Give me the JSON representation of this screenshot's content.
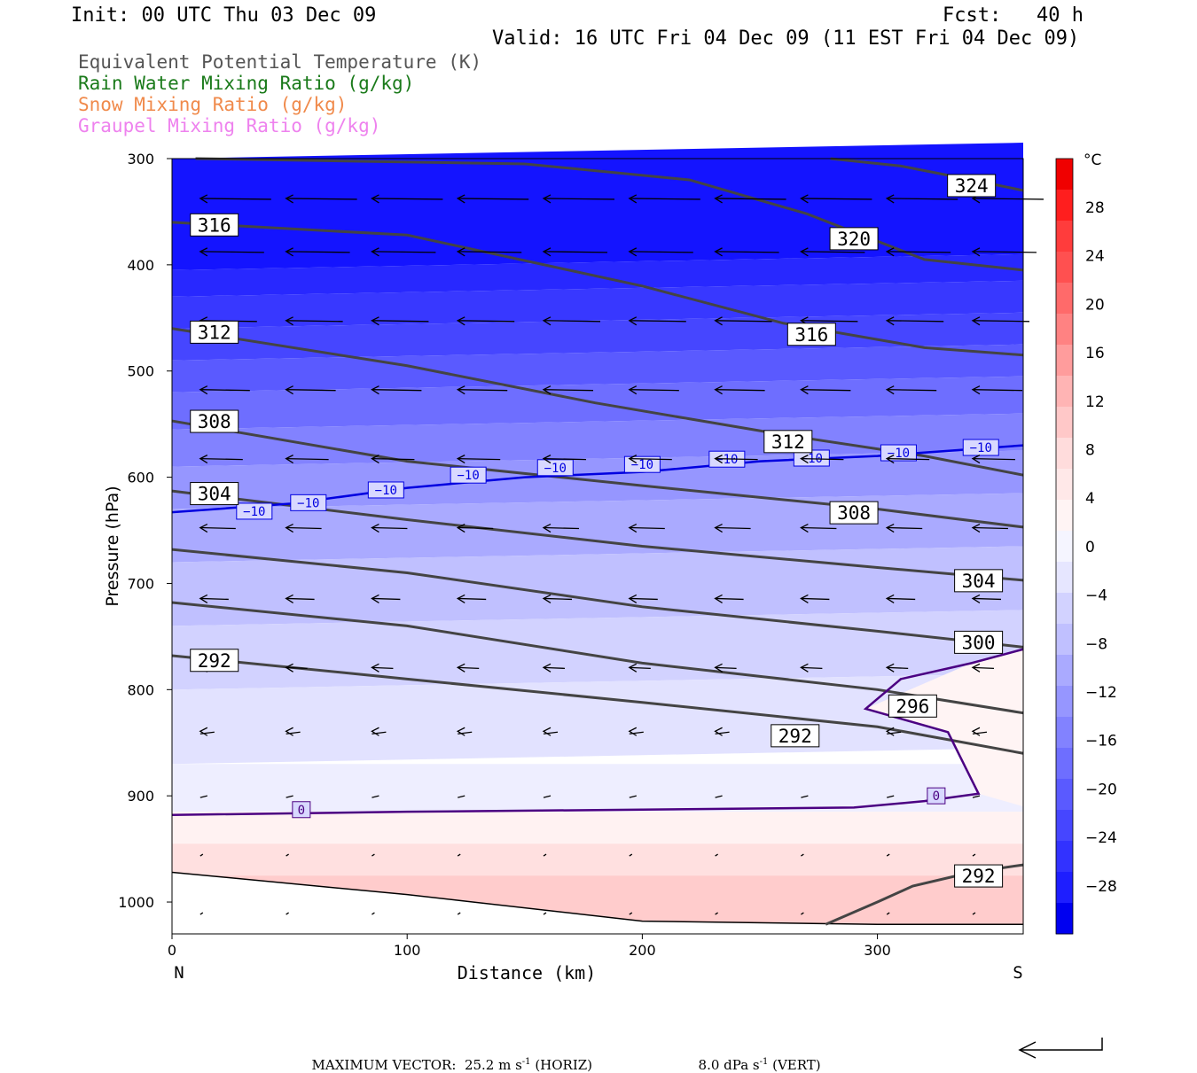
{
  "header": {
    "init": "Init: 00 UTC Thu 03 Dec 09",
    "fcst": "Fcst:   40 h",
    "valid": "Valid: 16 UTC Fri 04 Dec 09 (11 EST Fri 04 Dec 09)"
  },
  "titles": [
    {
      "text": "Equivalent Potential Temperature (K)",
      "color": "#555555"
    },
    {
      "text": "Rain Water Mixing Ratio (g/kg)",
      "color": "#1a7a1a"
    },
    {
      "text": "Snow Mixing Ratio (g/kg)",
      "color": "#f08a4b"
    },
    {
      "text": "Graupel Mixing Ratio (g/kg)",
      "color": "#ee82ee"
    }
  ],
  "footer": {
    "label": "MAXIMUM VECTOR:",
    "horiz": "25.2 m s",
    "horiz_suffix": " (HORIZ)",
    "vert": "8.0 dPa s",
    "vert_suffix": " (VERT)",
    "exp": "-1"
  },
  "chart_data": {
    "type": "contour",
    "title": "Equivalent Potential Temperature (K)",
    "xlabel": "Distance (km)",
    "ylabel": "Pressure (hPa)",
    "xlim": [
      0,
      362
    ],
    "ylim": [
      1030,
      300
    ],
    "x_ticks": [
      0,
      100,
      200,
      300
    ],
    "y_ticks": [
      300,
      400,
      500,
      600,
      700,
      800,
      900,
      1000
    ],
    "x_end_labels": {
      "left": "N",
      "right": "S"
    },
    "colorbar": {
      "unit": "°C",
      "tick_labels": [
        "28",
        "24",
        "20",
        "16",
        "12",
        "8",
        "4",
        "0",
        "−4",
        "−8",
        "−12",
        "−16",
        "−20",
        "−24",
        "−28"
      ],
      "colors": [
        "#f00000",
        "#ff1e1e",
        "#ff3c3c",
        "#ff5050",
        "#ff6a6a",
        "#ff8282",
        "#ff9c9c",
        "#ffb4b4",
        "#ffc8c8",
        "#ffdcdc",
        "#ffe8e8",
        "#fff4f4",
        "#f5f5ff",
        "#e6e6ff",
        "#d2d2ff",
        "#c0c0ff",
        "#aaaaff",
        "#9696ff",
        "#8282ff",
        "#6e6eff",
        "#5a5aff",
        "#4646ff",
        "#3232ff",
        "#1e1eff",
        "#0000f0"
      ]
    },
    "temperature_bands": [
      {
        "p": 400,
        "value": -28
      },
      {
        "p": 460,
        "value": -24
      },
      {
        "p": 520,
        "value": -20
      },
      {
        "p": 580,
        "value": -16
      },
      {
        "p": 640,
        "value": -12
      },
      {
        "p": 720,
        "value": -8
      },
      {
        "p": 800,
        "value": -4
      },
      {
        "p": 900,
        "value": 0
      },
      {
        "p": 960,
        "value": 4
      },
      {
        "p": 1000,
        "value": 8
      }
    ],
    "theta_e_contours": [
      {
        "label": "324",
        "points": [
          [
            280,
            300
          ],
          [
            310,
            307
          ],
          [
            340,
            320
          ],
          [
            362,
            330
          ]
        ],
        "label_at": [
          340,
          325
        ]
      },
      {
        "label": "320",
        "points": [
          [
            10,
            300
          ],
          [
            150,
            305
          ],
          [
            220,
            320
          ],
          [
            270,
            352
          ],
          [
            320,
            395
          ],
          [
            362,
            405
          ]
        ],
        "label_at": [
          290,
          375
        ]
      },
      {
        "label": "316",
        "points": [
          [
            0,
            360
          ],
          [
            100,
            372
          ],
          [
            200,
            420
          ],
          [
            260,
            455
          ],
          [
            320,
            478
          ],
          [
            362,
            485
          ]
        ],
        "label_at": [
          18,
          362
        ]
      },
      {
        "label": "316",
        "points": [
          [
            0,
            360
          ],
          [
            100,
            372
          ],
          [
            200,
            420
          ],
          [
            260,
            455
          ],
          [
            320,
            478
          ],
          [
            362,
            485
          ]
        ],
        "label_at": [
          272,
          465
        ]
      },
      {
        "label": "312",
        "points": [
          [
            0,
            460
          ],
          [
            100,
            495
          ],
          [
            180,
            530
          ],
          [
            260,
            560
          ],
          [
            320,
            580
          ],
          [
            362,
            598
          ]
        ],
        "label_at": [
          18,
          463
        ]
      },
      {
        "label": "312",
        "points": [
          [
            0,
            460
          ],
          [
            100,
            495
          ],
          [
            180,
            530
          ],
          [
            260,
            560
          ],
          [
            320,
            580
          ],
          [
            362,
            598
          ]
        ],
        "label_at": [
          262,
          566
        ]
      },
      {
        "label": "308",
        "points": [
          [
            0,
            547
          ],
          [
            100,
            585
          ],
          [
            200,
            608
          ],
          [
            300,
            630
          ],
          [
            362,
            647
          ]
        ],
        "label_at": [
          18,
          547
        ]
      },
      {
        "label": "308",
        "points": [
          [
            0,
            547
          ],
          [
            100,
            585
          ],
          [
            200,
            608
          ],
          [
            300,
            630
          ],
          [
            362,
            647
          ]
        ],
        "label_at": [
          290,
          633
        ]
      },
      {
        "label": "304",
        "points": [
          [
            0,
            613
          ],
          [
            100,
            640
          ],
          [
            200,
            665
          ],
          [
            300,
            685
          ],
          [
            362,
            697
          ]
        ],
        "label_at": [
          18,
          615
        ]
      },
      {
        "label": "304",
        "points": [
          [
            0,
            613
          ],
          [
            100,
            640
          ],
          [
            200,
            665
          ],
          [
            300,
            685
          ],
          [
            362,
            697
          ]
        ],
        "label_at": [
          343,
          697
        ]
      },
      {
        "label": "300",
        "points": [
          [
            0,
            668
          ],
          [
            100,
            690
          ],
          [
            200,
            722
          ],
          [
            300,
            745
          ],
          [
            362,
            760
          ]
        ],
        "label_at": [
          343,
          755
        ]
      },
      {
        "label": "296",
        "points": [
          [
            0,
            718
          ],
          [
            100,
            740
          ],
          [
            200,
            775
          ],
          [
            300,
            800
          ],
          [
            362,
            822
          ]
        ],
        "label_at": [
          315,
          815
        ]
      },
      {
        "label": "292",
        "points": [
          [
            0,
            768
          ],
          [
            100,
            790
          ],
          [
            200,
            812
          ],
          [
            300,
            835
          ],
          [
            362,
            860
          ]
        ],
        "label_at": [
          18,
          772
        ]
      },
      {
        "label": "292",
        "points": [
          [
            0,
            768
          ],
          [
            100,
            790
          ],
          [
            200,
            812
          ],
          [
            300,
            835
          ],
          [
            362,
            860
          ]
        ],
        "label_at": [
          265,
          843
        ]
      },
      {
        "label": "292",
        "points": [
          [
            278,
            1021
          ],
          [
            300,
            1000
          ],
          [
            315,
            985
          ],
          [
            340,
            972
          ],
          [
            362,
            965
          ]
        ],
        "label_at": [
          343,
          975
        ]
      }
    ],
    "temp_contours": [
      {
        "label": "−10",
        "color": "#0000e0",
        "points": [
          [
            0,
            633
          ],
          [
            50,
            625
          ],
          [
            100,
            610
          ],
          [
            150,
            600
          ],
          [
            200,
            595
          ],
          [
            250,
            585
          ],
          [
            300,
            580
          ],
          [
            362,
            570
          ]
        ],
        "labels_at": [
          [
            35,
            632
          ],
          [
            58,
            624
          ],
          [
            91,
            612
          ],
          [
            126,
            598
          ],
          [
            163,
            591
          ],
          [
            200,
            588
          ],
          [
            236,
            583
          ],
          [
            272,
            582
          ],
          [
            309,
            577
          ],
          [
            344,
            572
          ]
        ]
      },
      {
        "label": "0",
        "color": "#4b0082",
        "points": [
          [
            0,
            918
          ],
          [
            100,
            915
          ],
          [
            200,
            913
          ],
          [
            290,
            911
          ],
          [
            320,
            905
          ],
          [
            343,
            898
          ],
          [
            330,
            840
          ],
          [
            295,
            818
          ],
          [
            310,
            790
          ],
          [
            340,
            775
          ],
          [
            362,
            762
          ]
        ],
        "labels_at": [
          [
            55,
            913
          ],
          [
            325,
            900
          ]
        ]
      }
    ],
    "wind_vectors_note": "cross-section winds (horizontal component m/s, vertical dPa/s)",
    "max_vector": {
      "horiz": 25.2,
      "vert": 8.0
    }
  }
}
